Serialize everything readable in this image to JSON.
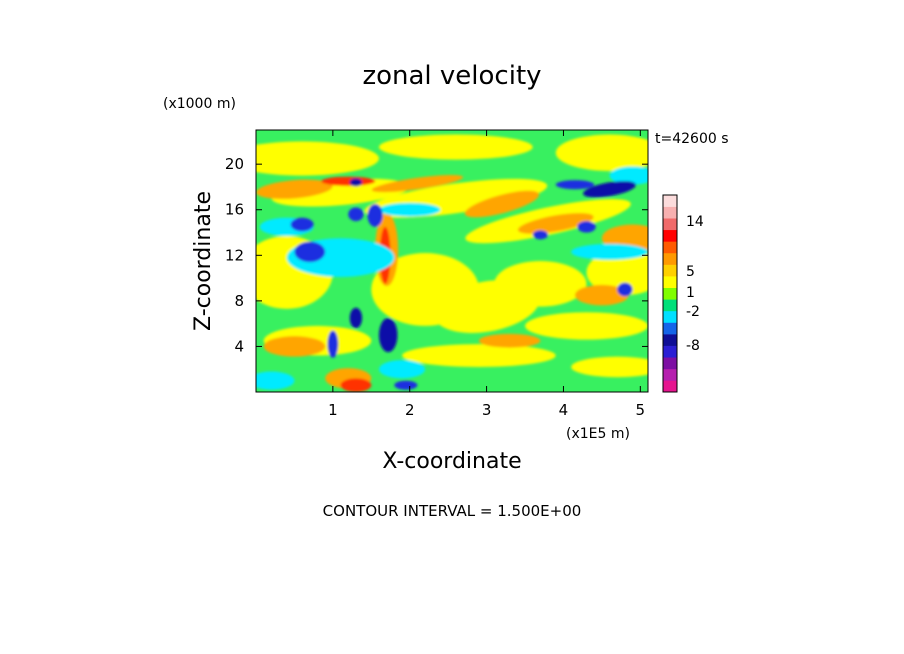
{
  "chart_data": {
    "type": "heatmap",
    "title": "zonal velocity",
    "xlabel": "X-coordinate",
    "ylabel": "Z-coordinate",
    "x_scale_label": "(x1E5 m)",
    "y_scale_label": "(x1000 m)",
    "time_label": "t=42600 s",
    "footer": "CONTOUR INTERVAL = 1.500E+00",
    "xlim": [
      0,
      5.1
    ],
    "ylim": [
      0,
      23
    ],
    "x_ticks": [
      "1",
      "2",
      "3",
      "4",
      "5"
    ],
    "x_tick_values": [
      1,
      2,
      3,
      4,
      5
    ],
    "y_ticks": [
      "4",
      "8",
      "12",
      "16",
      "20"
    ],
    "y_tick_values": [
      4,
      8,
      12,
      16,
      20
    ],
    "colorbar": {
      "labels": [
        "14",
        "5",
        "1",
        "-2",
        "-8"
      ],
      "label_values": [
        14,
        5,
        1,
        -2,
        -8
      ],
      "colors": [
        "#e6158f",
        "#b51fae",
        "#7d0fa3",
        "#2b1fd4",
        "#0f0f96",
        "#1565e8",
        "#00e0ff",
        "#00e07a",
        "#80ff00",
        "#ffff00",
        "#ffd000",
        "#ff9900",
        "#ff5a00",
        "#ff0000",
        "#f06a6a",
        "#f7b0b0",
        "#fbdcdc"
      ]
    },
    "colors": {
      "background_field": "#38f060",
      "cyan": "#00eaff",
      "yellow": "#ffff00",
      "orange": "#ffa500",
      "red": "#ff3000",
      "blue": "#1e2ee0",
      "navy": "#0a0aa8"
    }
  }
}
